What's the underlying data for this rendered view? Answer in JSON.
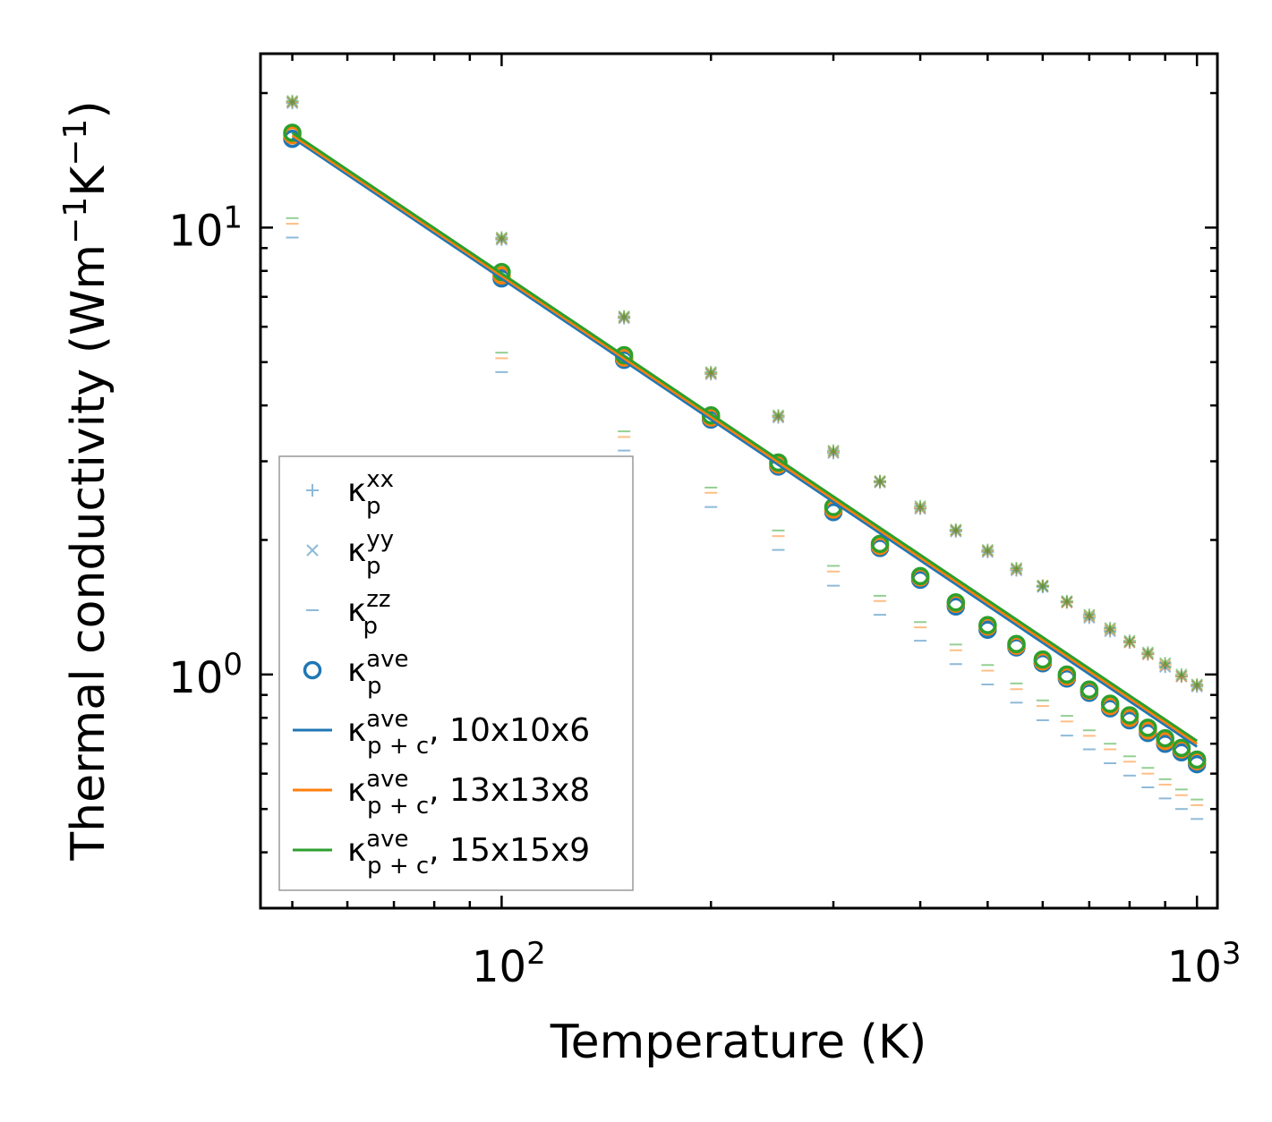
{
  "chart_data": {
    "type": "scatter",
    "xscale": "log",
    "yscale": "log",
    "xlim": [
      45,
      1070
    ],
    "ylim": [
      0.3,
      24.5
    ],
    "xlabel": "Temperature (K)",
    "ylabel": "Thermal conductivity (Wm",
    "ylabel_unit": {
      "exp1": "−1",
      "k": "K",
      "exp2": "−1",
      "close": ")"
    },
    "x_ticks": [
      {
        "value": 100,
        "base": "10",
        "exp": "2"
      },
      {
        "value": 1000,
        "base": "10",
        "exp": "3"
      }
    ],
    "y_ticks": [
      {
        "value": 1,
        "base": "10",
        "exp": "0"
      },
      {
        "value": 10,
        "base": "10",
        "exp": "1"
      }
    ],
    "x": [
      50,
      100,
      150,
      200,
      250,
      300,
      350,
      400,
      450,
      500,
      550,
      600,
      650,
      700,
      750,
      800,
      850,
      900,
      950,
      1000
    ],
    "colors": {
      "blue": "#1f77b4",
      "orange": "#ff7f0e",
      "green": "#2ca02c"
    },
    "series": [
      {
        "name": "κp^xx",
        "marker": "plus",
        "color": "#1f77b4",
        "group": "10x10x6",
        "values": [
          19.0,
          9.4,
          6.27,
          4.7,
          3.76,
          3.13,
          2.69,
          2.35,
          2.09,
          1.88,
          1.71,
          1.57,
          1.45,
          1.34,
          1.25,
          1.18,
          1.11,
          1.04,
          0.99,
          0.94
        ]
      },
      {
        "name": "κp^xx",
        "marker": "plus",
        "color": "#ff7f0e",
        "group": "13x13x8",
        "values": [
          19.1,
          9.45,
          6.3,
          4.72,
          3.78,
          3.15,
          2.7,
          2.36,
          2.1,
          1.89,
          1.72,
          1.58,
          1.45,
          1.35,
          1.26,
          1.18,
          1.11,
          1.05,
          0.99,
          0.945
        ]
      },
      {
        "name": "κp^xx",
        "marker": "plus",
        "color": "#2ca02c",
        "group": "15x15x9",
        "values": [
          19.2,
          9.5,
          6.33,
          4.75,
          3.8,
          3.17,
          2.71,
          2.38,
          2.11,
          1.9,
          1.73,
          1.58,
          1.46,
          1.36,
          1.27,
          1.19,
          1.12,
          1.06,
          1.0,
          0.95
        ]
      },
      {
        "name": "κp^yy",
        "marker": "cross",
        "color": "#1f77b4",
        "group": "10x10x6",
        "values": [
          19.0,
          9.4,
          6.27,
          4.7,
          3.76,
          3.13,
          2.69,
          2.35,
          2.09,
          1.88,
          1.71,
          1.57,
          1.45,
          1.34,
          1.25,
          1.18,
          1.11,
          1.04,
          0.99,
          0.94
        ]
      },
      {
        "name": "κp^yy",
        "marker": "cross",
        "color": "#ff7f0e",
        "group": "13x13x8",
        "values": [
          19.1,
          9.45,
          6.3,
          4.72,
          3.78,
          3.15,
          2.7,
          2.36,
          2.1,
          1.89,
          1.72,
          1.58,
          1.45,
          1.35,
          1.26,
          1.18,
          1.11,
          1.05,
          0.99,
          0.945
        ]
      },
      {
        "name": "κp^yy",
        "marker": "cross",
        "color": "#2ca02c",
        "group": "15x15x9",
        "values": [
          19.2,
          9.5,
          6.33,
          4.75,
          3.8,
          3.17,
          2.71,
          2.38,
          2.11,
          1.9,
          1.73,
          1.58,
          1.46,
          1.36,
          1.27,
          1.19,
          1.12,
          1.06,
          1.0,
          0.95
        ]
      },
      {
        "name": "κp^zz",
        "marker": "hline",
        "color": "#1f77b4",
        "group": "10x10x6",
        "values": [
          9.5,
          4.75,
          3.17,
          2.37,
          1.9,
          1.58,
          1.36,
          1.19,
          1.055,
          0.95,
          0.865,
          0.79,
          0.73,
          0.68,
          0.633,
          0.594,
          0.559,
          0.528,
          0.5,
          0.475
        ]
      },
      {
        "name": "κp^zz",
        "marker": "hline",
        "color": "#ff7f0e",
        "group": "13x13x8",
        "values": [
          10.2,
          5.1,
          3.4,
          2.55,
          2.04,
          1.7,
          1.46,
          1.275,
          1.133,
          1.02,
          0.927,
          0.85,
          0.785,
          0.729,
          0.68,
          0.638,
          0.6,
          0.567,
          0.537,
          0.51
        ]
      },
      {
        "name": "κp^zz",
        "marker": "hline",
        "color": "#2ca02c",
        "group": "15x15x9",
        "values": [
          10.5,
          5.25,
          3.5,
          2.62,
          2.1,
          1.75,
          1.5,
          1.31,
          1.167,
          1.05,
          0.955,
          0.875,
          0.808,
          0.75,
          0.7,
          0.656,
          0.618,
          0.583,
          0.553,
          0.525
        ]
      },
      {
        "name": "κp^ave",
        "marker": "circle",
        "color": "#1f77b4",
        "group": "10x10x6",
        "values": [
          15.8,
          7.7,
          5.06,
          3.72,
          2.92,
          2.31,
          1.92,
          1.63,
          1.42,
          1.26,
          1.15,
          1.06,
          0.98,
          0.91,
          0.84,
          0.79,
          0.74,
          0.7,
          0.67,
          0.63
        ]
      },
      {
        "name": "κp^ave",
        "marker": "circle",
        "color": "#ff7f0e",
        "group": "13x13x8",
        "values": [
          16.1,
          7.82,
          5.12,
          3.76,
          2.95,
          2.34,
          1.94,
          1.65,
          1.44,
          1.28,
          1.16,
          1.07,
          0.99,
          0.92,
          0.85,
          0.8,
          0.75,
          0.71,
          0.68,
          0.64
        ]
      },
      {
        "name": "κp^ave",
        "marker": "circle",
        "color": "#2ca02c",
        "group": "15x15x9",
        "values": [
          16.3,
          7.95,
          5.18,
          3.8,
          2.98,
          2.37,
          1.96,
          1.66,
          1.45,
          1.29,
          1.17,
          1.08,
          1.0,
          0.925,
          0.86,
          0.81,
          0.76,
          0.72,
          0.685,
          0.645
        ]
      },
      {
        "name": "κp+c^ave, 10x10x6",
        "marker": "line",
        "color": "#1f77b4",
        "x_range": [
          50,
          1000
        ],
        "values": [
          15.9,
          0.69
        ]
      },
      {
        "name": "κp+c^ave, 13x13x8",
        "marker": "line",
        "color": "#ff7f0e",
        "x_range": [
          50,
          1000
        ],
        "values": [
          16.1,
          0.7
        ]
      },
      {
        "name": "κp+c^ave, 15x15x9",
        "marker": "line",
        "color": "#2ca02c",
        "x_range": [
          50,
          1000
        ],
        "values": [
          16.3,
          0.71
        ]
      }
    ],
    "legend": {
      "location": "lower-left",
      "entries": [
        {
          "marker": "plus",
          "color": "#1f77b4",
          "base": "κ",
          "sub": "p",
          "sup": "xx",
          "suffix": ""
        },
        {
          "marker": "cross",
          "color": "#1f77b4",
          "base": "κ",
          "sub": "p",
          "sup": "yy",
          "suffix": ""
        },
        {
          "marker": "hline",
          "color": "#1f77b4",
          "base": "κ",
          "sub": "p",
          "sup": "zz",
          "suffix": ""
        },
        {
          "marker": "circle",
          "color": "#1f77b4",
          "base": "κ",
          "sub": "p",
          "sup": "ave",
          "suffix": ""
        },
        {
          "marker": "line",
          "color": "#1f77b4",
          "base": "κ",
          "sub": "p + c",
          "sup": "ave",
          "suffix": ", 10x10x6"
        },
        {
          "marker": "line",
          "color": "#ff7f0e",
          "base": "κ",
          "sub": "p + c",
          "sup": "ave",
          "suffix": ", 13x13x8"
        },
        {
          "marker": "line",
          "color": "#2ca02c",
          "base": "κ",
          "sub": "p + c",
          "sup": "ave",
          "suffix": ", 15x15x9"
        }
      ]
    }
  }
}
